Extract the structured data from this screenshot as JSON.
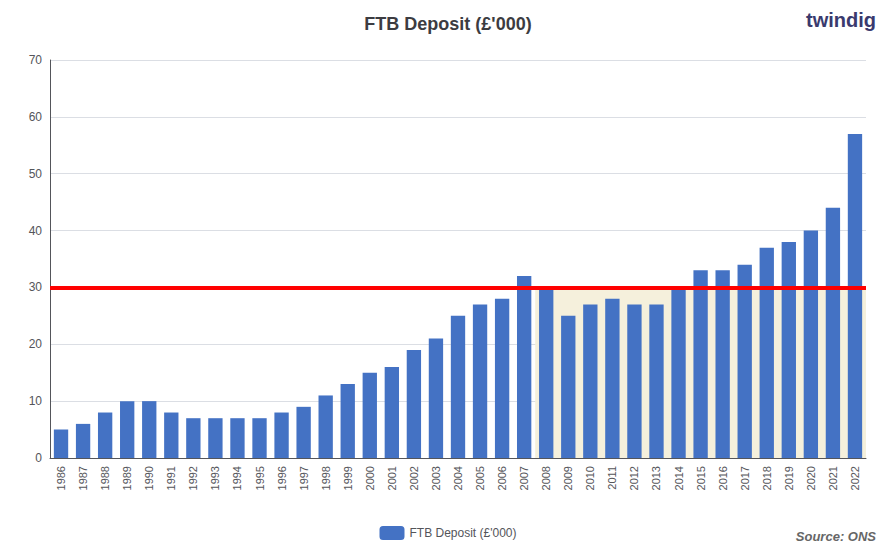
{
  "chart_data": {
    "type": "bar",
    "title": "FTB Deposit (£'000)",
    "categories": [
      "1986",
      "1987",
      "1988",
      "1989",
      "1990",
      "1991",
      "1992",
      "1993",
      "1994",
      "1995",
      "1996",
      "1997",
      "1998",
      "1999",
      "2000",
      "2001",
      "2002",
      "2003",
      "2004",
      "2005",
      "2006",
      "2007",
      "2008",
      "2009",
      "2010",
      "2011",
      "2012",
      "2013",
      "2014",
      "2015",
      "2016",
      "2017",
      "2018",
      "2019",
      "2020",
      "2021",
      "2022"
    ],
    "series": [
      {
        "name": "FTB Deposit (£'000)",
        "color": "#4472C4",
        "values": [
          5,
          6,
          8,
          10,
          10,
          8,
          7,
          7,
          7,
          7,
          8,
          9,
          11,
          13,
          15,
          16,
          19,
          21,
          25,
          27,
          28,
          32,
          30,
          25,
          27,
          28,
          27,
          27,
          30,
          33,
          33,
          34,
          37,
          38,
          40,
          44,
          57
        ]
      }
    ],
    "ylim": [
      0,
      70
    ],
    "yticks": [
      0,
      10,
      20,
      30,
      40,
      50,
      60,
      70
    ],
    "grid": true,
    "legend": "bottom",
    "red_line": {
      "value": 30,
      "color": "#FF0000"
    },
    "shaded": {
      "from": "2008",
      "to": "2022",
      "ymin": 0,
      "ymax": 30,
      "color": "#F5F0DC"
    },
    "annotations": [
      "Source: ONS",
      "twindig"
    ]
  }
}
